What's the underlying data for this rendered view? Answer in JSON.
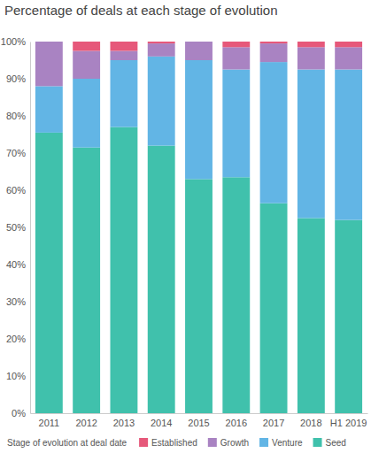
{
  "chart_data": {
    "type": "bar",
    "title": "Percentage of deals at each stage of evolution",
    "legend_title": "Stage of evolution at deal date",
    "categories": [
      "2011",
      "2012",
      "2013",
      "2014",
      "2015",
      "2016",
      "2017",
      "2018",
      "H1 2019"
    ],
    "series": [
      {
        "name": "Seed",
        "color": "#40c1ac",
        "values": [
          75.5,
          71.5,
          77,
          72,
          63,
          63.5,
          56.5,
          52.5,
          52
        ]
      },
      {
        "name": "Venture",
        "color": "#62b5e5",
        "values": [
          12.5,
          18.5,
          18,
          24,
          32,
          29,
          38,
          40,
          40.5
        ]
      },
      {
        "name": "Growth",
        "color": "#a983c2",
        "values": [
          12,
          7.5,
          2.5,
          3.5,
          5,
          6,
          5,
          6,
          6
        ]
      },
      {
        "name": "Established",
        "color": "#e6587a",
        "values": [
          0,
          2.5,
          2.5,
          0.5,
          0,
          1.5,
          0.5,
          1.5,
          1.5
        ]
      }
    ],
    "ylim": [
      0,
      100
    ],
    "yticks": [
      {
        "value": 0,
        "label": "0%"
      },
      {
        "value": 10,
        "label": "10%"
      },
      {
        "value": 20,
        "label": "20%"
      },
      {
        "value": 30,
        "label": "30%"
      },
      {
        "value": 40,
        "label": "40%"
      },
      {
        "value": 50,
        "label": "50%"
      },
      {
        "value": 60,
        "label": "60%"
      },
      {
        "value": 70,
        "label": "70%"
      },
      {
        "value": 80,
        "label": "80%"
      },
      {
        "value": 90,
        "label": "90%"
      },
      {
        "value": 100,
        "label": "100%"
      }
    ],
    "stacked": true,
    "legend": "bottom",
    "grid": false
  }
}
